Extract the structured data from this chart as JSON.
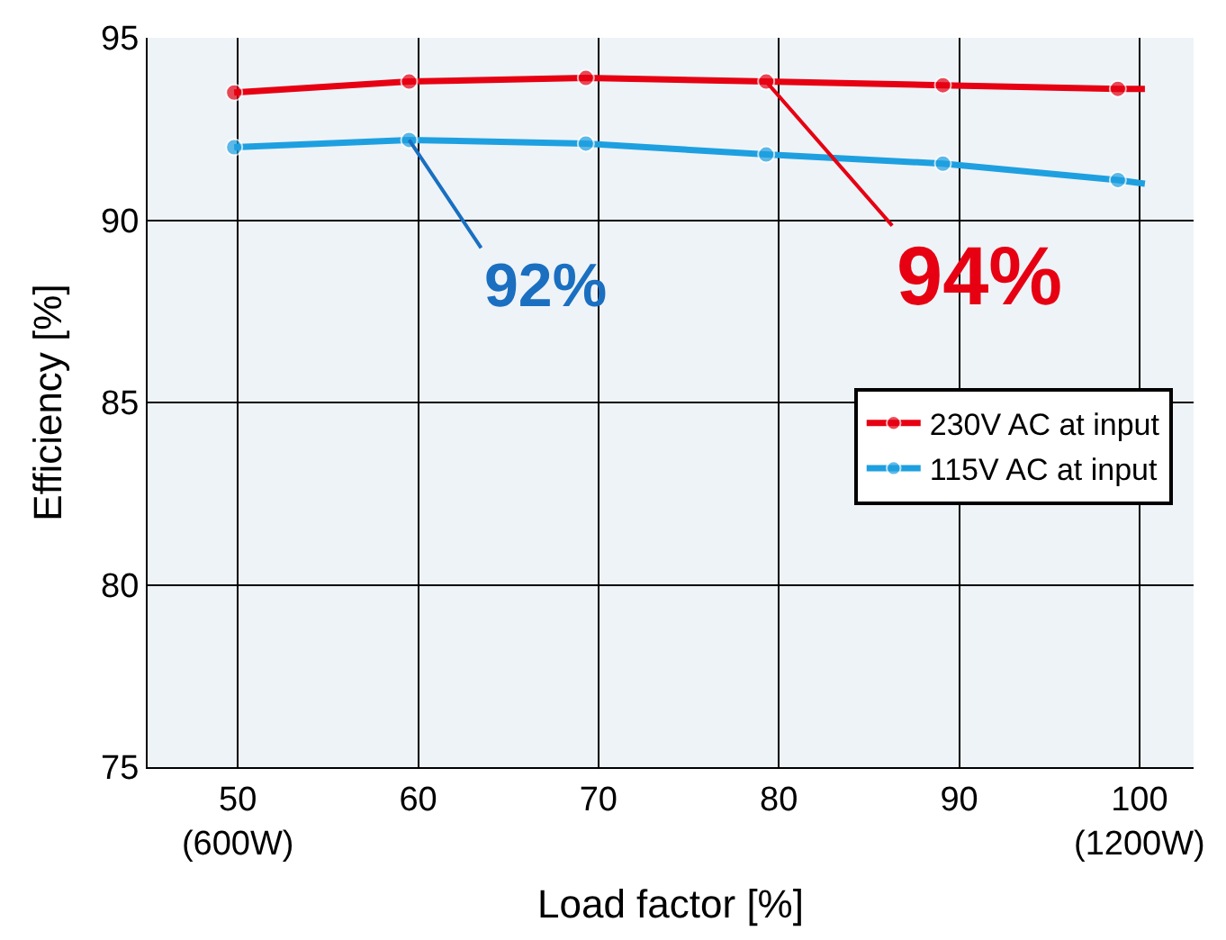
{
  "chart_data": {
    "type": "line",
    "xlabel": "Load factor [%]",
    "ylabel": "Efficiency [%]",
    "xlim": [
      45,
      103
    ],
    "ylim": [
      75,
      95
    ],
    "xticks": [
      {
        "value": 50,
        "label": "50\n(600W)"
      },
      60,
      70,
      80,
      90,
      {
        "value": 100,
        "label": "100\n(1200W)"
      }
    ],
    "yticks": [
      75,
      80,
      85,
      90,
      95
    ],
    "grid": true,
    "legend": "right",
    "marker": "circle",
    "line_style": "solid",
    "series": [
      {
        "name": "230V AC at input",
        "color": "#e60012",
        "x": [
          49.8,
          59.5,
          69.3,
          79.3,
          89.1,
          98.8,
          100.3
        ],
        "values": [
          93.5,
          93.8,
          93.9,
          93.8,
          93.7,
          93.6,
          93.6
        ]
      },
      {
        "name": "115V AC at input",
        "color": "#1ea0e0",
        "x": [
          49.8,
          59.5,
          69.3,
          79.3,
          89.1,
          98.8,
          100.3
        ],
        "values": [
          92.0,
          92.2,
          92.1,
          91.8,
          91.55,
          91.1,
          91.0
        ]
      }
    ],
    "annotations": [
      {
        "text": "92%",
        "x": 59.5,
        "y": 92.2
      },
      {
        "text": "94%",
        "x": 79.3,
        "y": 93.8
      }
    ]
  }
}
